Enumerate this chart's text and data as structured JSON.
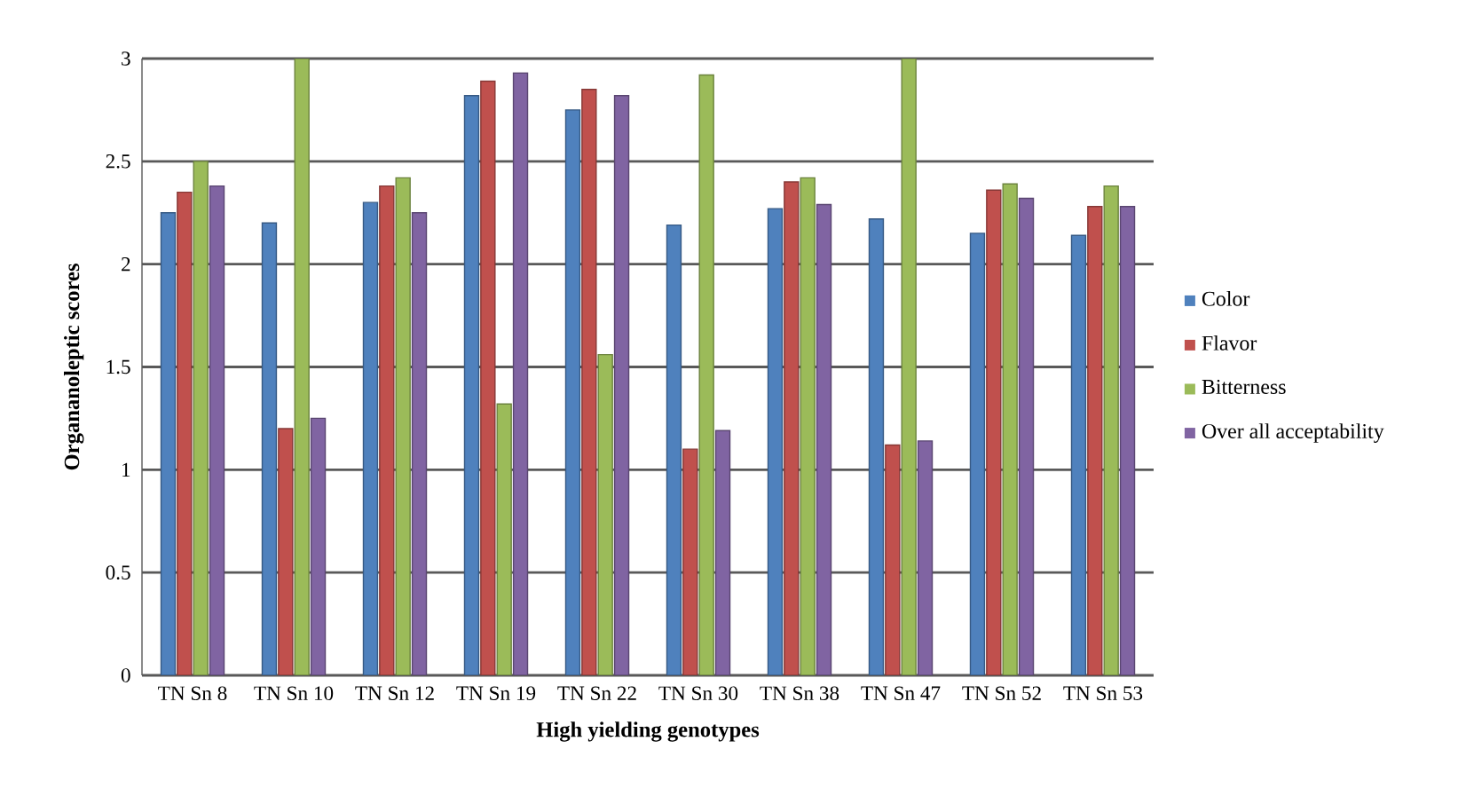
{
  "chart_data": {
    "type": "bar",
    "xlabel": "High yielding genotypes",
    "ylabel": "Organanoleptic scores",
    "categories": [
      "TN Sn 8",
      "TN Sn 10",
      "TN Sn 12",
      "TN Sn 19",
      "TN Sn 22",
      "TN Sn 30",
      "TN Sn 38",
      "TN Sn 47",
      "TN Sn 52",
      "TN Sn 53"
    ],
    "series": [
      {
        "name": "Color",
        "color": "#4f81bd",
        "values": [
          2.25,
          2.2,
          2.3,
          2.82,
          2.75,
          2.19,
          2.27,
          2.22,
          2.15,
          2.14
        ]
      },
      {
        "name": "Flavor",
        "color": "#c0504d",
        "values": [
          2.35,
          1.2,
          2.38,
          2.89,
          2.85,
          1.1,
          2.4,
          1.12,
          2.36,
          2.28
        ]
      },
      {
        "name": "Bitterness",
        "color": "#9bbb59",
        "values": [
          2.5,
          3.0,
          2.42,
          1.32,
          1.56,
          2.92,
          2.42,
          3.0,
          2.39,
          2.38
        ]
      },
      {
        "name": "Over all acceptability",
        "color": "#8064a2",
        "values": [
          2.38,
          1.25,
          2.25,
          2.93,
          2.82,
          1.19,
          2.29,
          1.14,
          2.32,
          2.28
        ]
      }
    ],
    "ylim": [
      0,
      3
    ],
    "yticks": [
      0,
      0.5,
      1,
      1.5,
      2,
      2.5,
      3
    ],
    "grid": "y",
    "legend": "right"
  }
}
